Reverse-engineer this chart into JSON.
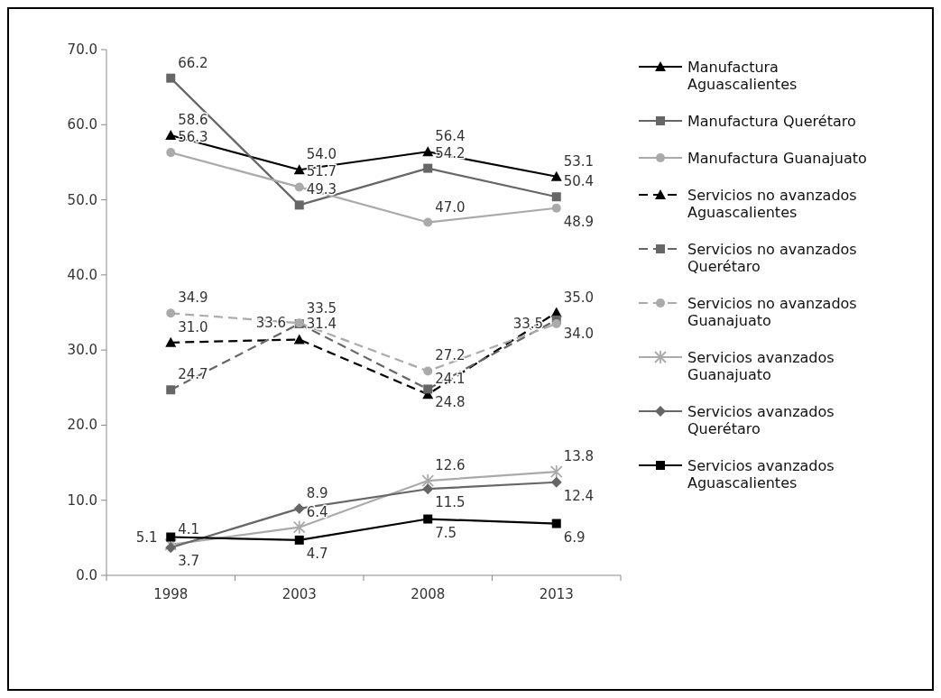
{
  "chart_data": {
    "type": "line",
    "categories": [
      "1998",
      "2003",
      "2008",
      "2013"
    ],
    "ylim": [
      0,
      70
    ],
    "yticks": [
      {
        "value": 0,
        "label": "0.0"
      },
      {
        "value": 10,
        "label": "10.0"
      },
      {
        "value": 20,
        "label": "20.0"
      },
      {
        "value": 30,
        "label": "30.0"
      },
      {
        "value": 40,
        "label": "40.0"
      },
      {
        "value": 50,
        "label": "50.0"
      },
      {
        "value": 60,
        "label": "60.0"
      },
      {
        "value": 70,
        "label": "70.0"
      }
    ],
    "grid": false,
    "legend": "right",
    "series": [
      {
        "name": "Manufactura Aguascalientes",
        "color": "#000000",
        "marker": "triangle",
        "line_style": "solid",
        "values": [
          58.6,
          54.0,
          56.4,
          53.1
        ],
        "value_labels": [
          "58.6",
          "54.0",
          "56.4",
          "53.1"
        ]
      },
      {
        "name": "Manufactura Querétaro",
        "color": "#666666",
        "marker": "square",
        "line_style": "solid",
        "values": [
          66.2,
          49.3,
          54.2,
          50.4
        ],
        "value_labels": [
          "66.2",
          "49.3",
          "54.2",
          "50.4"
        ]
      },
      {
        "name": "Manufactura Guanajuato",
        "color": "#aaaaaa",
        "marker": "circle",
        "line_style": "solid",
        "values": [
          56.3,
          51.7,
          47.0,
          48.9
        ],
        "value_labels": [
          "56.3",
          "51.7",
          "47.0",
          "48.9"
        ]
      },
      {
        "name": "Servicios no avanzados Aguascalientes",
        "color": "#000000",
        "marker": "triangle",
        "line_style": "dashed",
        "values": [
          31.0,
          31.4,
          24.1,
          35.0
        ],
        "value_labels": [
          "31.0",
          "31.4",
          "24.1",
          "35.0"
        ]
      },
      {
        "name": "Servicios no avanzados Querétaro",
        "color": "#666666",
        "marker": "square",
        "line_style": "dashed",
        "values": [
          24.7,
          33.5,
          24.8,
          34.0
        ],
        "value_labels": [
          "24.7",
          "33.5",
          "24.8",
          "34.0"
        ]
      },
      {
        "name": "Servicios no avanzados Guanajuato",
        "color": "#aaaaaa",
        "marker": "circle",
        "line_style": "dashed",
        "values": [
          34.9,
          33.6,
          27.2,
          33.5
        ],
        "value_labels": [
          "34.9",
          "33.6",
          "27.2",
          "33.5"
        ]
      },
      {
        "name": "Servicios avanzados Guanajuato",
        "color": "#aaaaaa",
        "marker": "cross",
        "line_style": "solid",
        "values": [
          4.1,
          6.4,
          12.6,
          13.8
        ],
        "value_labels": [
          "4.1",
          "6.4",
          "12.6",
          "13.8"
        ]
      },
      {
        "name": "Servicios avanzados Querétaro",
        "color": "#666666",
        "marker": "diamond",
        "line_style": "solid",
        "values": [
          3.7,
          8.9,
          11.5,
          12.4
        ],
        "value_labels": [
          "3.7",
          "8.9",
          "11.5",
          "12.4"
        ]
      },
      {
        "name": "Servicios avanzados Aguascalientes",
        "color": "#000000",
        "marker": "square",
        "line_style": "solid",
        "values": [
          5.1,
          4.7,
          7.5,
          6.9
        ],
        "value_labels": [
          "5.1",
          "4.7",
          "7.5",
          "6.9"
        ]
      }
    ]
  }
}
